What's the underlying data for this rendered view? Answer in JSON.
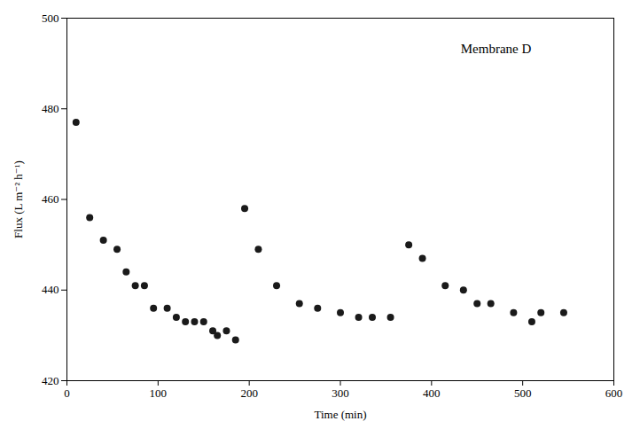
{
  "chart_data": {
    "type": "scatter",
    "x": [
      10,
      25,
      40,
      55,
      65,
      75,
      85,
      95,
      110,
      120,
      130,
      140,
      150,
      160,
      165,
      175,
      185,
      195,
      210,
      230,
      255,
      275,
      300,
      320,
      335,
      355,
      375,
      390,
      415,
      435,
      450,
      465,
      490,
      510,
      520,
      545
    ],
    "y": [
      477,
      456,
      451,
      449,
      444,
      441,
      441,
      436,
      436,
      434,
      433,
      433,
      433,
      431,
      430,
      431,
      429,
      458,
      449,
      441,
      437,
      436,
      435,
      434,
      434,
      434,
      450,
      447,
      441,
      440,
      437,
      437,
      435,
      433,
      435,
      435
    ],
    "xlabel": "Time (min)",
    "ylabel": "Flux (L m⁻² h⁻¹)",
    "annotation": "Membrane D",
    "xlim": [
      0,
      600
    ],
    "ylim": [
      420,
      500
    ],
    "xticks": [
      0,
      100,
      200,
      300,
      400,
      500,
      600
    ],
    "yticks": [
      420,
      440,
      460,
      480,
      500
    ],
    "color": "#1a1a1a",
    "grid": false
  }
}
